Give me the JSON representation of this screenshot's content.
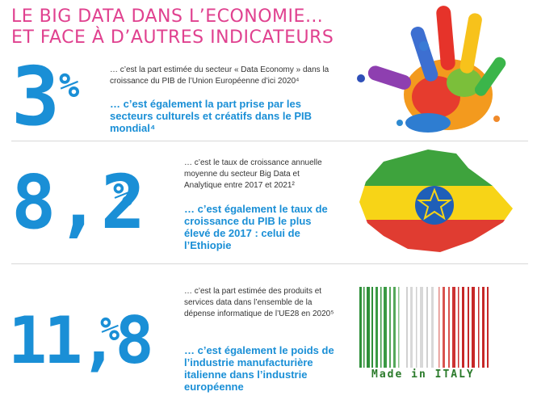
{
  "title": {
    "line1": "LE BIG DATA DANS L’ECONOMIE…",
    "line2": "ET FACE À D’AUTRES INDICATEURS"
  },
  "sections": [
    {
      "number": "3",
      "percent": "%",
      "small_text": "… c’est la part estimée du secteur « Data Economy » dans la croissance du PIB de l’Union Européenne d’ici 2020⁴",
      "emphasis": "… c’est également la part prise par les secteurs culturels et créatifs dans le PIB mondial⁴",
      "image": "painted-hand-icon"
    },
    {
      "number": "8,2",
      "percent": "%",
      "small_text": "… c’est le taux de croissance annuelle moyenne du secteur Big Data et Analytique entre 2017 et 2021²",
      "emphasis": "… c’est également le taux de croissance du PIB le plus élevé de 2017 : celui de l’Ethiopie",
      "image": "ethiopia-flag-map-icon"
    },
    {
      "number": "11,8",
      "percent": "%",
      "small_text": "… c’est la part estimée des produits et services data dans l’ensemble de la dépense informatique de l’UE28 en 2020⁵",
      "emphasis": "… c’est également le poids de l’industrie manufacturière italienne dans l’industrie européenne",
      "image": "italian-barcode-icon",
      "image_caption": "Made in ITALY"
    }
  ],
  "colors": {
    "title": "#e0418f",
    "accent": "#1a8fd6"
  }
}
